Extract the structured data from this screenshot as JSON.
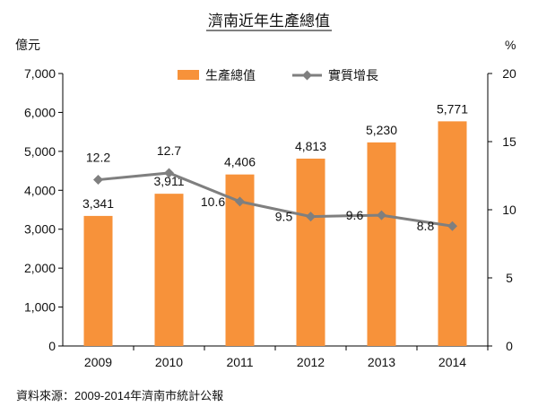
{
  "chart_data": {
    "type": "bar",
    "title": "濟南近年生產總值",
    "categories": [
      "2009",
      "2010",
      "2011",
      "2012",
      "2013",
      "2014"
    ],
    "y_left_unit": "億元",
    "y_right_unit": "%",
    "y_left_ticks": [
      "0",
      "1,000",
      "2,000",
      "3,000",
      "4,000",
      "5,000",
      "6,000",
      "7,000"
    ],
    "y_right_ticks": [
      "0",
      "5",
      "10",
      "15",
      "20"
    ],
    "ylim_left": [
      0,
      7000
    ],
    "ylim_right": [
      0,
      20
    ],
    "series": [
      {
        "name": "生產總值",
        "type": "bar",
        "axis": "left",
        "color": "#F7923A",
        "values": [
          3341,
          3911,
          4406,
          4813,
          5230,
          5771
        ],
        "labels": [
          "3,341",
          "3,911",
          "4,406",
          "4,813",
          "5,230",
          "5,771"
        ]
      },
      {
        "name": "實質增長",
        "type": "line",
        "axis": "right",
        "color": "#7F7F7F",
        "values": [
          12.2,
          12.7,
          10.6,
          9.5,
          9.6,
          8.8
        ],
        "labels": [
          "12.2",
          "12.7",
          "10.6",
          "9.5",
          "9.6",
          "8.8"
        ]
      }
    ],
    "legend_position": "top-center",
    "grid": false,
    "source": "資料來源：2009-2014年濟南市統計公報"
  }
}
